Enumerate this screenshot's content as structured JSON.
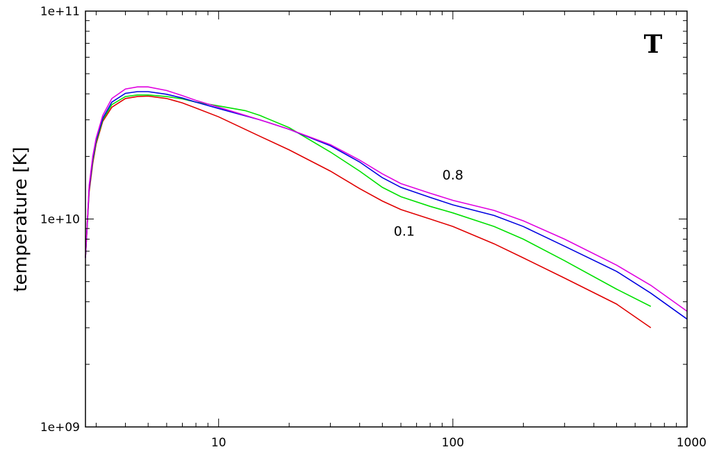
{
  "chart_data": {
    "type": "line",
    "title": "T",
    "xlabel": "",
    "ylabel": "temperature [K]",
    "xscale": "log",
    "yscale": "log",
    "xlim": [
      2.7,
      1000
    ],
    "ylim": [
      1000000000.0,
      100000000000.0
    ],
    "x_ticks": [
      {
        "value": 10,
        "label": "10"
      },
      {
        "value": 100,
        "label": "100"
      },
      {
        "value": 1000,
        "label": "1000"
      }
    ],
    "y_ticks": [
      {
        "value": 1000000000.0,
        "label": "1e+09"
      },
      {
        "value": 10000000000.0,
        "label": "1e+10"
      },
      {
        "value": 100000000000.0,
        "label": "1e+11"
      }
    ],
    "grid": false,
    "legend": "none",
    "annotations": [
      {
        "text": "0.8",
        "x": 100,
        "y": 15500000000.0
      },
      {
        "text": "0.1",
        "x": 62,
        "y": 8300000000.0
      }
    ],
    "series": [
      {
        "color": "#e00000",
        "x": [
          2.7,
          2.8,
          2.9,
          3.0,
          3.2,
          3.5,
          4.0,
          4.5,
          5.0,
          6.0,
          7.0,
          8.0,
          10,
          15,
          20,
          30,
          40,
          50,
          60,
          80,
          100,
          150,
          200,
          300,
          500,
          700
        ],
        "y": [
          6500000000.0,
          13500000000.0,
          18500000000.0,
          23000000000.0,
          29500000000.0,
          34500000000.0,
          38000000000.0,
          38800000000.0,
          39000000000.0,
          38000000000.0,
          36200000000.0,
          34200000000.0,
          31000000000.0,
          25000000000.0,
          21500000000.0,
          17000000000.0,
          14000000000.0,
          12200000000.0,
          11100000000.0,
          10000000000.0,
          9200000000.0,
          7600000000.0,
          6500000000.0,
          5200000000.0,
          3900000000.0,
          3000000000.0
        ]
      },
      {
        "color": "#00e000",
        "x": [
          2.7,
          2.8,
          2.9,
          3.0,
          3.2,
          3.5,
          4.0,
          4.5,
          5.0,
          6.0,
          7.0,
          8.0,
          10,
          13,
          15,
          20,
          30,
          40,
          50,
          60,
          80,
          100,
          150,
          200,
          300,
          500,
          700
        ],
        "y": [
          6500000000.0,
          14000000000.0,
          19000000000.0,
          23500000000.0,
          30000000000.0,
          35500000000.0,
          38800000000.0,
          39500000000.0,
          39500000000.0,
          38800000000.0,
          37800000000.0,
          36500000000.0,
          35000000000.0,
          33200000000.0,
          31500000000.0,
          27500000000.0,
          21000000000.0,
          17000000000.0,
          14200000000.0,
          12800000000.0,
          11500000000.0,
          10700000000.0,
          9200000000.0,
          8000000000.0,
          6300000000.0,
          4600000000.0,
          3800000000.0
        ]
      },
      {
        "color": "#0000e0",
        "x": [
          2.7,
          2.8,
          2.9,
          3.0,
          3.2,
          3.5,
          4.0,
          4.5,
          5.0,
          6.0,
          7.0,
          8.0,
          10,
          15,
          20,
          30,
          40,
          50,
          60,
          80,
          100,
          150,
          200,
          300,
          500,
          700,
          1000
        ],
        "y": [
          6500000000.0,
          14000000000.0,
          19500000000.0,
          24000000000.0,
          30500000000.0,
          36500000000.0,
          40200000000.0,
          41000000000.0,
          41000000000.0,
          39800000000.0,
          38200000000.0,
          36500000000.0,
          34000000000.0,
          30000000000.0,
          27000000000.0,
          22500000000.0,
          18800000000.0,
          15800000000.0,
          14200000000.0,
          12700000000.0,
          11700000000.0,
          10400000000.0,
          9200000000.0,
          7400000000.0,
          5600000000.0,
          4400000000.0,
          3300000000.0
        ]
      },
      {
        "color": "#e000e0",
        "x": [
          2.7,
          2.8,
          2.9,
          3.0,
          3.2,
          3.5,
          4.0,
          4.5,
          5.0,
          6.0,
          7.0,
          8.0,
          10,
          15,
          20,
          30,
          40,
          50,
          60,
          80,
          100,
          150,
          200,
          300,
          500,
          700,
          1000
        ],
        "y": [
          6500000000.0,
          14500000000.0,
          20000000000.0,
          24500000000.0,
          31500000000.0,
          38000000000.0,
          42200000000.0,
          43200000000.0,
          43200000000.0,
          41500000000.0,
          39200000000.0,
          37200000000.0,
          34500000000.0,
          30000000000.0,
          27000000000.0,
          22800000000.0,
          19200000000.0,
          16500000000.0,
          14800000000.0,
          13300000000.0,
          12300000000.0,
          11000000000.0,
          9800000000.0,
          8000000000.0,
          6000000000.0,
          4800000000.0,
          3600000000.0
        ]
      }
    ]
  }
}
